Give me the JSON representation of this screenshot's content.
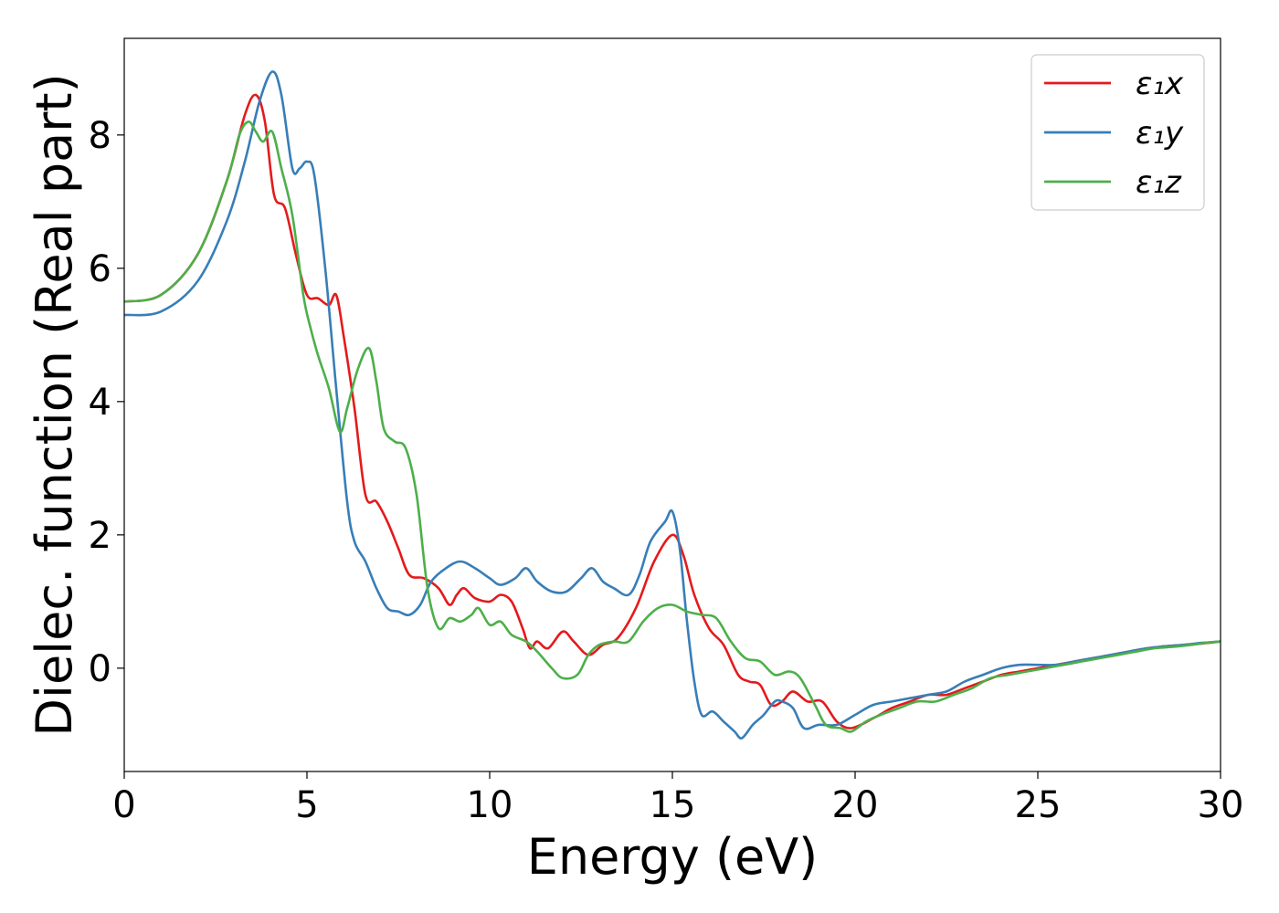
{
  "chart_data": {
    "type": "line",
    "xlabel": "Energy (eV)",
    "ylabel": "Dielec. function (Real part)",
    "xlim": [
      0,
      30
    ],
    "ylim": [
      -1.55,
      9.45
    ],
    "xticks": [
      0,
      5,
      10,
      15,
      20,
      25,
      30
    ],
    "yticks": [
      0,
      2,
      4,
      6,
      8
    ],
    "grid": false,
    "legend_position": "top-right",
    "series": [
      {
        "name": "ε₁x",
        "color": "#e41a1c",
        "points": [
          [
            0,
            5.5
          ],
          [
            1,
            5.6
          ],
          [
            2,
            6.2
          ],
          [
            2.8,
            7.3
          ],
          [
            3.3,
            8.3
          ],
          [
            3.6,
            8.6
          ],
          [
            3.85,
            8.2
          ],
          [
            4.1,
            7.1
          ],
          [
            4.4,
            6.9
          ],
          [
            4.7,
            6.2
          ],
          [
            5,
            5.6
          ],
          [
            5.3,
            5.55
          ],
          [
            5.6,
            5.45
          ],
          [
            5.8,
            5.6
          ],
          [
            6,
            5.0
          ],
          [
            6.3,
            3.9
          ],
          [
            6.6,
            2.6
          ],
          [
            6.9,
            2.5
          ],
          [
            7.2,
            2.2
          ],
          [
            7.5,
            1.8
          ],
          [
            7.8,
            1.4
          ],
          [
            8.2,
            1.35
          ],
          [
            8.6,
            1.2
          ],
          [
            8.9,
            0.95
          ],
          [
            9.1,
            1.1
          ],
          [
            9.3,
            1.2
          ],
          [
            9.6,
            1.05
          ],
          [
            10,
            1.0
          ],
          [
            10.3,
            1.1
          ],
          [
            10.6,
            1.0
          ],
          [
            10.9,
            0.6
          ],
          [
            11.1,
            0.3
          ],
          [
            11.3,
            0.4
          ],
          [
            11.6,
            0.3
          ],
          [
            12,
            0.55
          ],
          [
            12.3,
            0.4
          ],
          [
            12.7,
            0.2
          ],
          [
            13.1,
            0.35
          ],
          [
            13.5,
            0.45
          ],
          [
            14,
            0.9
          ],
          [
            14.5,
            1.6
          ],
          [
            15,
            2.0
          ],
          [
            15.3,
            1.7
          ],
          [
            15.6,
            1.1
          ],
          [
            16,
            0.6
          ],
          [
            16.4,
            0.35
          ],
          [
            16.8,
            -0.1
          ],
          [
            17.1,
            -0.2
          ],
          [
            17.4,
            -0.25
          ],
          [
            17.7,
            -0.55
          ],
          [
            18,
            -0.5
          ],
          [
            18.3,
            -0.35
          ],
          [
            18.7,
            -0.5
          ],
          [
            19.1,
            -0.5
          ],
          [
            19.5,
            -0.8
          ],
          [
            19.9,
            -0.9
          ],
          [
            20.5,
            -0.75
          ],
          [
            21,
            -0.6
          ],
          [
            21.5,
            -0.5
          ],
          [
            22,
            -0.4
          ],
          [
            22.5,
            -0.4
          ],
          [
            23,
            -0.3
          ],
          [
            23.5,
            -0.2
          ],
          [
            24,
            -0.1
          ],
          [
            24.5,
            -0.05
          ],
          [
            25,
            0.0
          ],
          [
            25.5,
            0.05
          ],
          [
            26,
            0.1
          ],
          [
            26.5,
            0.15
          ],
          [
            27,
            0.2
          ],
          [
            27.5,
            0.25
          ],
          [
            28,
            0.3
          ],
          [
            28.5,
            0.33
          ],
          [
            29,
            0.35
          ],
          [
            29.5,
            0.37
          ],
          [
            30,
            0.4
          ]
        ]
      },
      {
        "name": "ε₁y",
        "color": "#377eb8",
        "points": [
          [
            0,
            5.3
          ],
          [
            1,
            5.35
          ],
          [
            2,
            5.8
          ],
          [
            2.8,
            6.7
          ],
          [
            3.3,
            7.6
          ],
          [
            3.7,
            8.5
          ],
          [
            4.05,
            8.95
          ],
          [
            4.3,
            8.6
          ],
          [
            4.6,
            7.5
          ],
          [
            4.8,
            7.5
          ],
          [
            5,
            7.6
          ],
          [
            5.2,
            7.4
          ],
          [
            5.5,
            6.0
          ],
          [
            5.8,
            4.2
          ],
          [
            6.1,
            2.5
          ],
          [
            6.3,
            1.9
          ],
          [
            6.6,
            1.6
          ],
          [
            6.9,
            1.2
          ],
          [
            7.2,
            0.9
          ],
          [
            7.5,
            0.85
          ],
          [
            7.8,
            0.8
          ],
          [
            8.1,
            0.95
          ],
          [
            8.4,
            1.3
          ],
          [
            8.8,
            1.5
          ],
          [
            9.2,
            1.6
          ],
          [
            9.6,
            1.5
          ],
          [
            10,
            1.35
          ],
          [
            10.3,
            1.25
          ],
          [
            10.7,
            1.35
          ],
          [
            11,
            1.5
          ],
          [
            11.3,
            1.3
          ],
          [
            11.7,
            1.15
          ],
          [
            12.1,
            1.15
          ],
          [
            12.5,
            1.35
          ],
          [
            12.8,
            1.5
          ],
          [
            13.1,
            1.3
          ],
          [
            13.4,
            1.2
          ],
          [
            13.8,
            1.1
          ],
          [
            14.1,
            1.4
          ],
          [
            14.4,
            1.9
          ],
          [
            14.8,
            2.2
          ],
          [
            15,
            2.35
          ],
          [
            15.2,
            1.8
          ],
          [
            15.4,
            0.7
          ],
          [
            15.6,
            -0.2
          ],
          [
            15.8,
            -0.7
          ],
          [
            16.1,
            -0.65
          ],
          [
            16.4,
            -0.8
          ],
          [
            16.7,
            -0.95
          ],
          [
            16.9,
            -1.05
          ],
          [
            17.2,
            -0.85
          ],
          [
            17.5,
            -0.7
          ],
          [
            17.8,
            -0.5
          ],
          [
            18,
            -0.5
          ],
          [
            18.3,
            -0.6
          ],
          [
            18.6,
            -0.9
          ],
          [
            19,
            -0.85
          ],
          [
            19.5,
            -0.85
          ],
          [
            20,
            -0.7
          ],
          [
            20.5,
            -0.55
          ],
          [
            21,
            -0.5
          ],
          [
            21.5,
            -0.45
          ],
          [
            22,
            -0.4
          ],
          [
            22.5,
            -0.35
          ],
          [
            23,
            -0.2
          ],
          [
            23.5,
            -0.1
          ],
          [
            24,
            0.0
          ],
          [
            24.5,
            0.05
          ],
          [
            25,
            0.05
          ],
          [
            25.5,
            0.05
          ],
          [
            26,
            0.1
          ],
          [
            26.5,
            0.15
          ],
          [
            27,
            0.2
          ],
          [
            27.5,
            0.25
          ],
          [
            28,
            0.3
          ],
          [
            28.5,
            0.33
          ],
          [
            29,
            0.35
          ],
          [
            29.5,
            0.38
          ],
          [
            30,
            0.4
          ]
        ]
      },
      {
        "name": "ε₁z",
        "color": "#4daf4a",
        "points": [
          [
            0,
            5.5
          ],
          [
            1,
            5.6
          ],
          [
            2,
            6.2
          ],
          [
            2.8,
            7.3
          ],
          [
            3.15,
            8.0
          ],
          [
            3.4,
            8.2
          ],
          [
            3.6,
            8.05
          ],
          [
            3.8,
            7.9
          ],
          [
            4.05,
            8.05
          ],
          [
            4.3,
            7.5
          ],
          [
            4.6,
            6.8
          ],
          [
            4.9,
            5.6
          ],
          [
            5.1,
            5.1
          ],
          [
            5.3,
            4.7
          ],
          [
            5.6,
            4.2
          ],
          [
            5.9,
            3.55
          ],
          [
            6.1,
            3.9
          ],
          [
            6.4,
            4.5
          ],
          [
            6.7,
            4.8
          ],
          [
            6.9,
            4.3
          ],
          [
            7.1,
            3.6
          ],
          [
            7.4,
            3.4
          ],
          [
            7.7,
            3.3
          ],
          [
            8,
            2.6
          ],
          [
            8.3,
            1.2
          ],
          [
            8.6,
            0.6
          ],
          [
            8.9,
            0.75
          ],
          [
            9.2,
            0.7
          ],
          [
            9.5,
            0.8
          ],
          [
            9.7,
            0.9
          ],
          [
            10,
            0.65
          ],
          [
            10.3,
            0.7
          ],
          [
            10.6,
            0.5
          ],
          [
            11,
            0.4
          ],
          [
            11.3,
            0.25
          ],
          [
            11.7,
            0.0
          ],
          [
            12,
            -0.15
          ],
          [
            12.4,
            -0.1
          ],
          [
            12.7,
            0.2
          ],
          [
            13,
            0.35
          ],
          [
            13.4,
            0.4
          ],
          [
            13.8,
            0.4
          ],
          [
            14.2,
            0.7
          ],
          [
            14.6,
            0.9
          ],
          [
            15,
            0.95
          ],
          [
            15.4,
            0.85
          ],
          [
            15.8,
            0.8
          ],
          [
            16.2,
            0.75
          ],
          [
            16.6,
            0.4
          ],
          [
            17,
            0.15
          ],
          [
            17.4,
            0.1
          ],
          [
            17.8,
            -0.1
          ],
          [
            18.2,
            -0.05
          ],
          [
            18.5,
            -0.15
          ],
          [
            18.9,
            -0.55
          ],
          [
            19.2,
            -0.85
          ],
          [
            19.6,
            -0.9
          ],
          [
            19.9,
            -0.95
          ],
          [
            20.3,
            -0.8
          ],
          [
            20.7,
            -0.7
          ],
          [
            21.2,
            -0.6
          ],
          [
            21.7,
            -0.5
          ],
          [
            22.2,
            -0.5
          ],
          [
            22.7,
            -0.4
          ],
          [
            23.2,
            -0.3
          ],
          [
            23.7,
            -0.15
          ],
          [
            24.2,
            -0.1
          ],
          [
            24.7,
            -0.05
          ],
          [
            25.2,
            0.0
          ],
          [
            25.7,
            0.05
          ],
          [
            26.2,
            0.1
          ],
          [
            26.7,
            0.15
          ],
          [
            27.2,
            0.2
          ],
          [
            27.7,
            0.25
          ],
          [
            28.2,
            0.3
          ],
          [
            28.7,
            0.32
          ],
          [
            29.2,
            0.35
          ],
          [
            29.6,
            0.38
          ],
          [
            30,
            0.4
          ]
        ]
      }
    ]
  }
}
